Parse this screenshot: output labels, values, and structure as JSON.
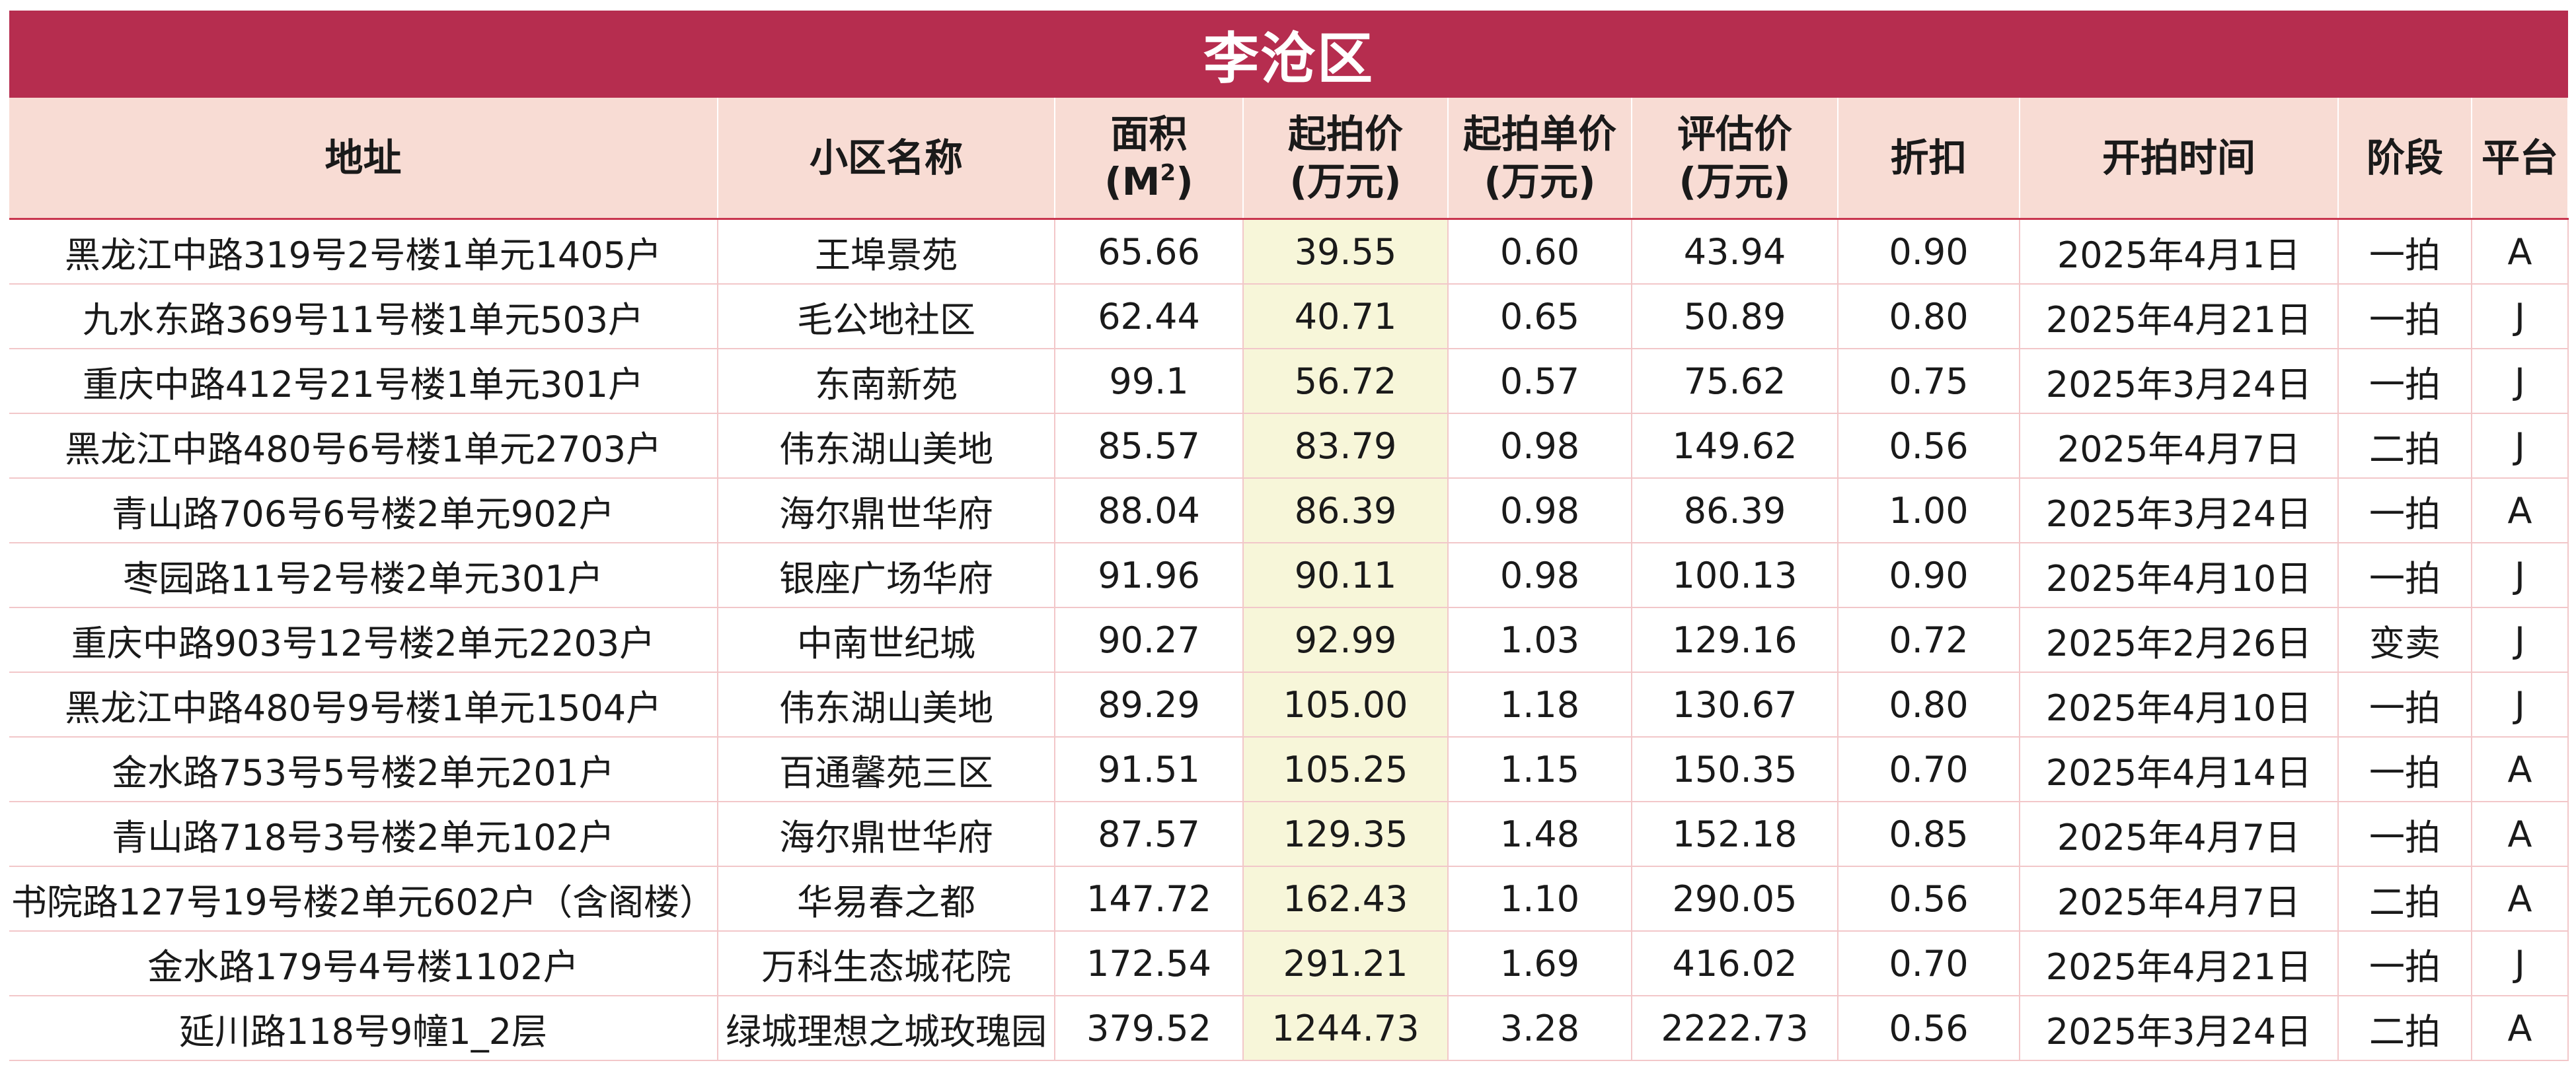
{
  "title": "李沧区",
  "headers": {
    "address": "地址",
    "community": "小区名称",
    "area_line1": "面积",
    "area_unit_prefix": "(M",
    "area_unit_sup": "2",
    "area_unit_suffix": ")",
    "start_price_line1": "起拍价",
    "start_price_line2": "(万元)",
    "unit_price_line1": "起拍单价",
    "unit_price_line2": "(万元)",
    "eval_price_line1": "评估价",
    "eval_price_line2": "(万元)",
    "discount": "折扣",
    "start_time": "开拍时间",
    "stage": "阶段",
    "platform": "平台"
  },
  "rows": [
    {
      "address": "黑龙江中路319号2号楼1单元1405户",
      "community": "王埠景苑",
      "area": "65.66",
      "start_price": "39.55",
      "unit_price": "0.60",
      "eval_price": "43.94",
      "discount": "0.90",
      "start_time": "2025年4月1日",
      "stage": "一拍",
      "platform": "A"
    },
    {
      "address": "九水东路369号11号楼1单元503户",
      "community": "毛公地社区",
      "area": "62.44",
      "start_price": "40.71",
      "unit_price": "0.65",
      "eval_price": "50.89",
      "discount": "0.80",
      "start_time": "2025年4月21日",
      "stage": "一拍",
      "platform": "J"
    },
    {
      "address": "重庆中路412号21号楼1单元301户",
      "community": "东南新苑",
      "area": "99.1",
      "start_price": "56.72",
      "unit_price": "0.57",
      "eval_price": "75.62",
      "discount": "0.75",
      "start_time": "2025年3月24日",
      "stage": "一拍",
      "platform": "J"
    },
    {
      "address": "黑龙江中路480号6号楼1单元2703户",
      "community": "伟东湖山美地",
      "area": "85.57",
      "start_price": "83.79",
      "unit_price": "0.98",
      "eval_price": "149.62",
      "discount": "0.56",
      "start_time": "2025年4月7日",
      "stage": "二拍",
      "platform": "J"
    },
    {
      "address": "青山路706号6号楼2单元902户",
      "community": "海尔鼎世华府",
      "area": "88.04",
      "start_price": "86.39",
      "unit_price": "0.98",
      "eval_price": "86.39",
      "discount": "1.00",
      "start_time": "2025年3月24日",
      "stage": "一拍",
      "platform": "A"
    },
    {
      "address": "枣园路11号2号楼2单元301户",
      "community": "银座广场华府",
      "area": "91.96",
      "start_price": "90.11",
      "unit_price": "0.98",
      "eval_price": "100.13",
      "discount": "0.90",
      "start_time": "2025年4月10日",
      "stage": "一拍",
      "platform": "J"
    },
    {
      "address": "重庆中路903号12号楼2单元2203户",
      "community": "中南世纪城",
      "area": "90.27",
      "start_price": "92.99",
      "unit_price": "1.03",
      "eval_price": "129.16",
      "discount": "0.72",
      "start_time": "2025年2月26日",
      "stage": "变卖",
      "platform": "J"
    },
    {
      "address": "黑龙江中路480号9号楼1单元1504户",
      "community": "伟东湖山美地",
      "area": "89.29",
      "start_price": "105.00",
      "unit_price": "1.18",
      "eval_price": "130.67",
      "discount": "0.80",
      "start_time": "2025年4月10日",
      "stage": "一拍",
      "platform": "J"
    },
    {
      "address": "金水路753号5号楼2单元201户",
      "community": "百通馨苑三区",
      "area": "91.51",
      "start_price": "105.25",
      "unit_price": "1.15",
      "eval_price": "150.35",
      "discount": "0.70",
      "start_time": "2025年4月14日",
      "stage": "一拍",
      "platform": "A"
    },
    {
      "address": "青山路718号3号楼2单元102户",
      "community": "海尔鼎世华府",
      "area": "87.57",
      "start_price": "129.35",
      "unit_price": "1.48",
      "eval_price": "152.18",
      "discount": "0.85",
      "start_time": "2025年4月7日",
      "stage": "一拍",
      "platform": "A"
    },
    {
      "address": "书院路127号19号楼2单元602户（含阁楼）",
      "community": "华易春之都",
      "area": "147.72",
      "start_price": "162.43",
      "unit_price": "1.10",
      "eval_price": "290.05",
      "discount": "0.56",
      "start_time": "2025年4月7日",
      "stage": "二拍",
      "platform": "A"
    },
    {
      "address": "金水路179号4号楼1102户",
      "community": "万科生态城花院",
      "area": "172.54",
      "start_price": "291.21",
      "unit_price": "1.69",
      "eval_price": "416.02",
      "discount": "0.70",
      "start_time": "2025年4月21日",
      "stage": "一拍",
      "platform": "J"
    },
    {
      "address": "延川路118号9幢1_2层",
      "community": "绿城理想之城玫瑰园",
      "area": "379.52",
      "start_price": "1244.73",
      "unit_price": "3.28",
      "eval_price": "2222.73",
      "discount": "0.56",
      "start_time": "2025年3月24日",
      "stage": "二拍",
      "platform": "A"
    }
  ]
}
